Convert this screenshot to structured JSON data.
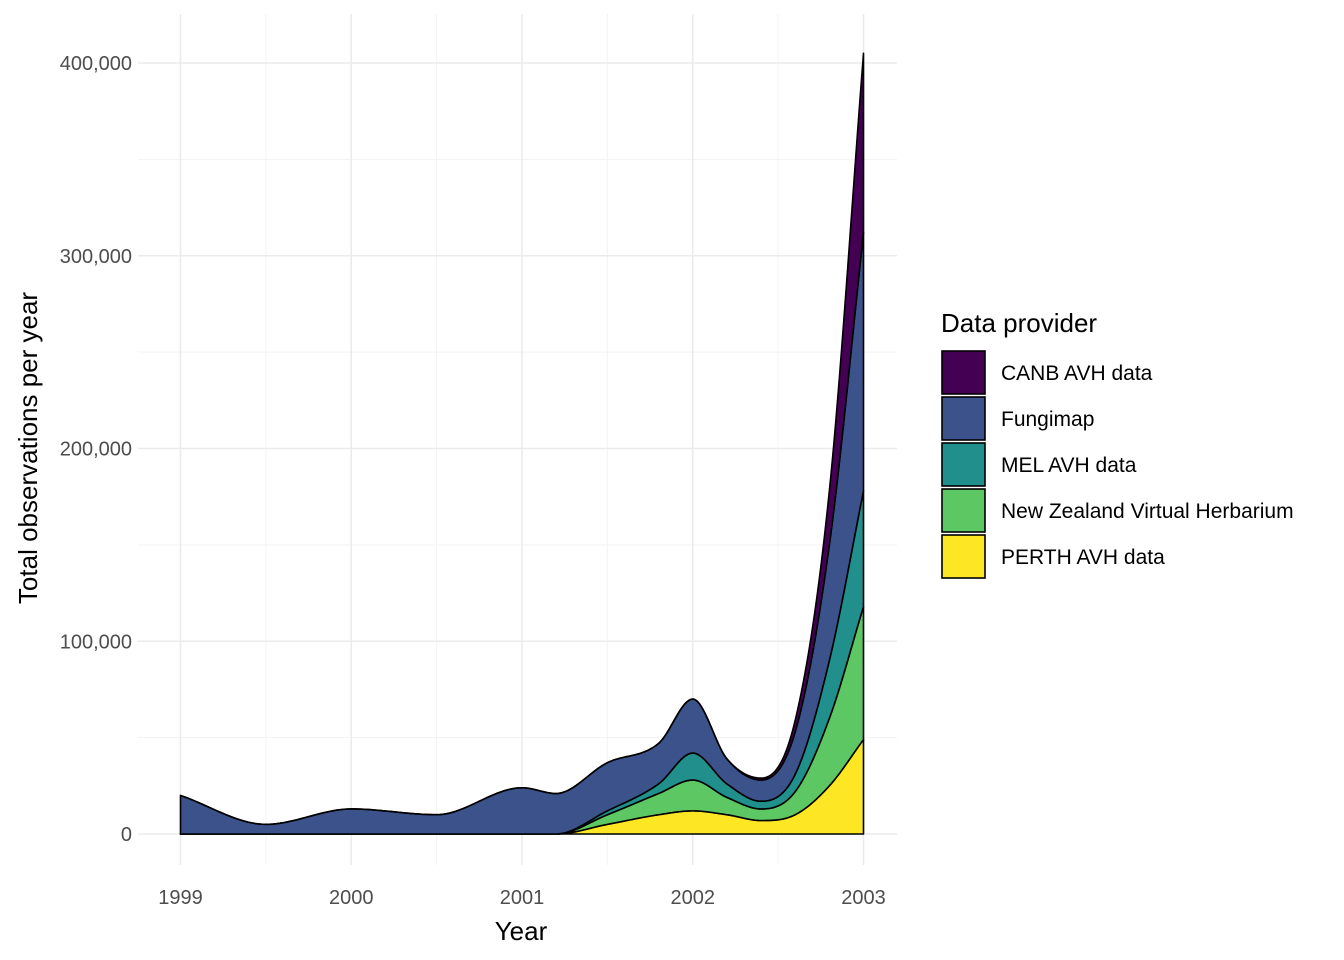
{
  "chart_data": {
    "type": "area",
    "stacked": true,
    "smoothed": true,
    "xlabel": "Year",
    "ylabel": "Total observations per year",
    "xlim": [
      1999,
      2003
    ],
    "ylim": [
      0,
      400000
    ],
    "x_ticks": [
      {
        "value": 1999,
        "label": "1999"
      },
      {
        "value": 2000,
        "label": "2000"
      },
      {
        "value": 2001,
        "label": "2001"
      },
      {
        "value": 2002,
        "label": "2002"
      },
      {
        "value": 2003,
        "label": "2003"
      }
    ],
    "y_ticks": [
      {
        "value": 0,
        "label": "0"
      },
      {
        "value": 100000,
        "label": "100,000"
      },
      {
        "value": 200000,
        "label": "200,000"
      },
      {
        "value": 300000,
        "label": "300,000"
      },
      {
        "value": 400000,
        "label": "400,000"
      }
    ],
    "grid": true,
    "legend": {
      "title": "Data provider",
      "position": "right"
    },
    "series": [
      {
        "name": "PERTH AVH data",
        "color": "#FDE725",
        "points": [
          [
            1999,
            0
          ],
          [
            1999.5,
            0
          ],
          [
            2000,
            0
          ],
          [
            2000.5,
            0
          ],
          [
            2001,
            0
          ],
          [
            2001.2,
            0
          ],
          [
            2001.5,
            5000
          ],
          [
            2001.8,
            10000
          ],
          [
            2002,
            12000
          ],
          [
            2002.2,
            10000
          ],
          [
            2002.4,
            7000
          ],
          [
            2002.6,
            10000
          ],
          [
            2002.8,
            25000
          ],
          [
            2003,
            49000
          ]
        ]
      },
      {
        "name": "New Zealand Virtual Herbarium",
        "color": "#5DC863",
        "points": [
          [
            1999,
            0
          ],
          [
            1999.5,
            0
          ],
          [
            2000,
            0
          ],
          [
            2000.5,
            0
          ],
          [
            2001,
            0
          ],
          [
            2001.2,
            0
          ],
          [
            2001.5,
            5000
          ],
          [
            2001.8,
            11000
          ],
          [
            2002,
            16000
          ],
          [
            2002.2,
            9000
          ],
          [
            2002.4,
            6000
          ],
          [
            2002.6,
            12000
          ],
          [
            2002.8,
            35000
          ],
          [
            2003,
            69000
          ]
        ]
      },
      {
        "name": "MEL AVH data",
        "color": "#21908C",
        "points": [
          [
            1999,
            0
          ],
          [
            1999.5,
            0
          ],
          [
            2000,
            0
          ],
          [
            2000.5,
            0
          ],
          [
            2001,
            0
          ],
          [
            2001.2,
            0
          ],
          [
            2001.5,
            2000
          ],
          [
            2001.8,
            5000
          ],
          [
            2002,
            14000
          ],
          [
            2002.2,
            7000
          ],
          [
            2002.4,
            4000
          ],
          [
            2002.6,
            9000
          ],
          [
            2002.8,
            30000
          ],
          [
            2003,
            60000
          ]
        ]
      },
      {
        "name": "Fungimap",
        "color": "#3B528B",
        "points": [
          [
            1999,
            20000
          ],
          [
            1999.5,
            5000
          ],
          [
            2000,
            13000
          ],
          [
            2000.5,
            10000
          ],
          [
            2001,
            24000
          ],
          [
            2001.2,
            21000
          ],
          [
            2001.5,
            25000
          ],
          [
            2001.8,
            21000
          ],
          [
            2002,
            28000
          ],
          [
            2002.2,
            13000
          ],
          [
            2002.4,
            11000
          ],
          [
            2002.6,
            22000
          ],
          [
            2002.8,
            60000
          ],
          [
            2003,
            134000
          ]
        ]
      },
      {
        "name": "CANB AVH data",
        "color": "#440154",
        "points": [
          [
            1999,
            0
          ],
          [
            1999.5,
            0
          ],
          [
            2000,
            0
          ],
          [
            2000.5,
            0
          ],
          [
            2001,
            0
          ],
          [
            2001.2,
            0
          ],
          [
            2001.5,
            0
          ],
          [
            2001.8,
            0
          ],
          [
            2002,
            0
          ],
          [
            2002.2,
            0
          ],
          [
            2002.4,
            1000
          ],
          [
            2002.6,
            6000
          ],
          [
            2002.8,
            28000
          ],
          [
            2003,
            93000
          ]
        ]
      }
    ]
  }
}
